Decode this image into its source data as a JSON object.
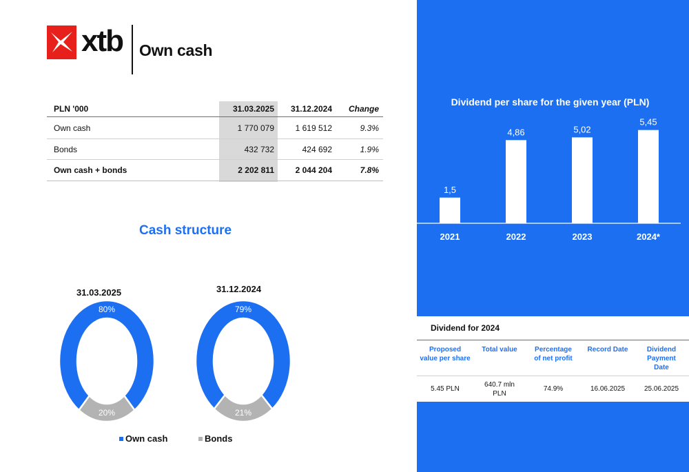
{
  "brand": {
    "logo_text": "xtb",
    "title": "Own cash",
    "accent_red": "#e8201c",
    "accent_blue": "#1d6ff2"
  },
  "cash_table": {
    "headers": [
      "PLN '000",
      "31.03.2025",
      "31.12.2024",
      "Change"
    ],
    "rows": [
      {
        "label": "Own cash",
        "a": "1 770 079",
        "b": "1 619 512",
        "change": "9.3%"
      },
      {
        "label": "Bonds",
        "a": "432 732",
        "b": "424 692",
        "change": "1.9%"
      },
      {
        "label": "Own cash + bonds",
        "a": "2 202 811",
        "b": "2 044 204",
        "change": "7.8%"
      }
    ]
  },
  "cash_structure_title": "Cash structure",
  "chart_data": [
    {
      "type": "bar",
      "title": "Dividend per share for the given year (PLN)",
      "categories": [
        "2021",
        "2022",
        "2023",
        "2024*"
      ],
      "values": [
        1.5,
        4.86,
        5.02,
        5.45
      ],
      "value_labels": [
        "1,5",
        "4,86",
        "5,02",
        "5,45"
      ],
      "ylim": [
        0,
        5.8
      ],
      "grid": false,
      "bar_color": "#ffffff",
      "background": "#1d6ff2"
    },
    {
      "type": "pie",
      "title": "31.03.2025",
      "donut": true,
      "categories": [
        "Own cash",
        "Bonds"
      ],
      "values": [
        80,
        20
      ],
      "value_labels": [
        "80%",
        "20%"
      ],
      "colors": [
        "#1d6ff2",
        "#b3b3b3"
      ]
    },
    {
      "type": "pie",
      "title": "31.12.2024",
      "donut": true,
      "categories": [
        "Own cash",
        "Bonds"
      ],
      "values": [
        79,
        21
      ],
      "value_labels": [
        "79%",
        "21%"
      ],
      "colors": [
        "#1d6ff2",
        "#b3b3b3"
      ]
    }
  ],
  "legend": [
    {
      "label": "Own cash",
      "color": "#1d6ff2"
    },
    {
      "label": "Bonds",
      "color": "#b3b3b3"
    }
  ],
  "dividend_table": {
    "title": "Dividend for 2024",
    "headers": [
      [
        "Proposed",
        "value per share"
      ],
      [
        "Total value"
      ],
      [
        "Percentage",
        "of net profit"
      ],
      [
        "Record Date"
      ],
      [
        "Dividend",
        "Payment",
        "Date"
      ]
    ],
    "values": [
      [
        "5.45 PLN"
      ],
      [
        "640.7 mln",
        "PLN"
      ],
      [
        "74.9%"
      ],
      [
        "16.06.2025"
      ],
      [
        "25.06.2025"
      ]
    ]
  }
}
